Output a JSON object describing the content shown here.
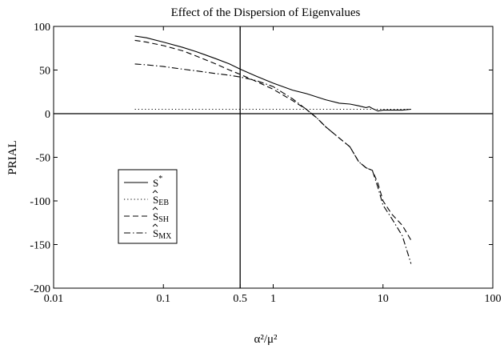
{
  "chart_data": {
    "type": "line",
    "title": "Effect of the Dispersion of Eigenvalues",
    "xlabel": "α²/μ²",
    "ylabel": "PRIAL",
    "xscale": "log",
    "xlim": [
      0.01,
      100
    ],
    "ylim": [
      -200,
      100
    ],
    "xticks": [
      {
        "value": 0.01,
        "label": "0.01"
      },
      {
        "value": 0.1,
        "label": "0.1"
      },
      {
        "value": 0.5,
        "label": "0.5"
      },
      {
        "value": 1,
        "label": "1"
      },
      {
        "value": 10,
        "label": "10"
      },
      {
        "value": 100,
        "label": "100"
      }
    ],
    "yticks": [
      100,
      50,
      0,
      -50,
      -100,
      -150,
      -200
    ],
    "reference_lines": {
      "vertical_x": 0.5,
      "horizontal_y": 0
    },
    "legend": {
      "placement": "middle-left",
      "entries": [
        {
          "series": 0,
          "label": "S",
          "sup": "*",
          "sub": "",
          "hat": false
        },
        {
          "series": 1,
          "label": "S",
          "sup": "",
          "sub": "EB",
          "hat": true
        },
        {
          "series": 2,
          "label": "S",
          "sup": "",
          "sub": "SH",
          "hat": true
        },
        {
          "series": 3,
          "label": "S",
          "sup": "",
          "sub": "MX",
          "hat": true
        }
      ]
    },
    "series": [
      {
        "style": "solid",
        "x": [
          0.055,
          0.07,
          0.1,
          0.15,
          0.2,
          0.3,
          0.4,
          0.5,
          0.7,
          1,
          1.5,
          2,
          3,
          4,
          5,
          6,
          7,
          7.5,
          8,
          9,
          10,
          12,
          15,
          18
        ],
        "y": [
          89,
          87,
          82,
          76,
          71,
          63,
          57,
          51,
          43,
          35,
          27,
          23,
          16,
          12,
          11,
          9,
          7,
          8,
          6,
          3,
          4,
          4,
          4,
          5
        ]
      },
      {
        "style": "dotted",
        "x": [
          0.055,
          0.1,
          0.5,
          1,
          5,
          10,
          18
        ],
        "y": [
          5,
          5,
          5,
          5,
          5,
          5,
          5
        ]
      },
      {
        "style": "dashed",
        "x": [
          0.055,
          0.07,
          0.1,
          0.15,
          0.2,
          0.3,
          0.4,
          0.5,
          0.7,
          1,
          1.5,
          2,
          2.5,
          3,
          4,
          5,
          6,
          7,
          8,
          9,
          10,
          12,
          15,
          18
        ],
        "y": [
          84,
          82,
          78,
          72,
          66,
          57,
          50,
          45,
          37,
          28,
          15,
          5,
          -5,
          -15,
          -28,
          -38,
          -55,
          -62,
          -65,
          -80,
          -100,
          -115,
          -128,
          -145
        ]
      },
      {
        "style": "dashdot",
        "x": [
          0.055,
          0.07,
          0.1,
          0.15,
          0.2,
          0.3,
          0.4,
          0.5,
          0.7,
          1,
          1.5,
          2,
          2.5,
          3,
          4,
          5,
          6,
          7,
          8,
          9,
          10,
          12,
          15,
          18
        ],
        "y": [
          57,
          56,
          54,
          51,
          49,
          46,
          44,
          42,
          38,
          31,
          17,
          5,
          -5,
          -15,
          -28,
          -38,
          -55,
          -62,
          -65,
          -85,
          -105,
          -120,
          -140,
          -172
        ]
      }
    ]
  }
}
